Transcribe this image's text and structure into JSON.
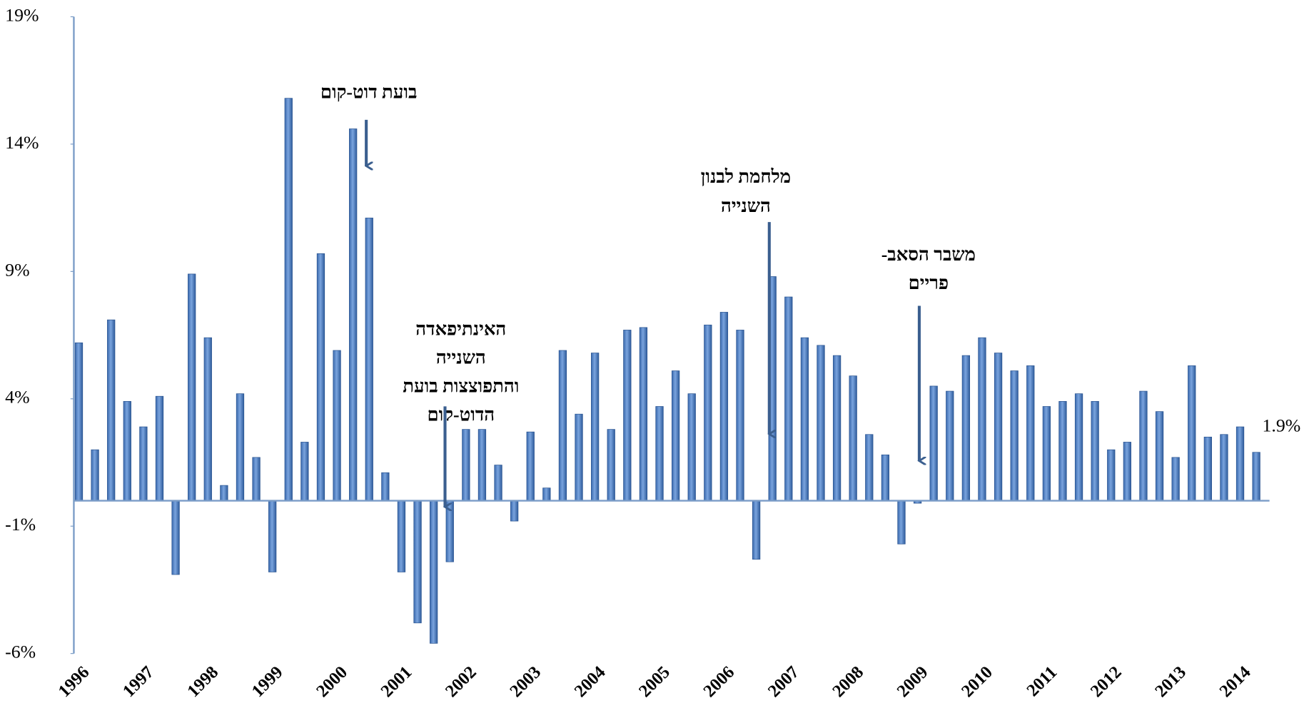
{
  "chart_data": {
    "type": "bar",
    "categories": [
      "1996",
      null,
      null,
      null,
      "1997",
      null,
      null,
      null,
      "1998",
      null,
      null,
      null,
      "1999",
      null,
      null,
      null,
      "2000",
      null,
      null,
      null,
      "2001",
      null,
      null,
      null,
      "2002",
      null,
      null,
      null,
      "2003",
      null,
      null,
      null,
      "2004",
      null,
      null,
      null,
      "2005",
      null,
      null,
      null,
      "2006",
      null,
      null,
      null,
      "2007",
      null,
      null,
      null,
      "2008",
      null,
      null,
      null,
      "2009",
      null,
      null,
      null,
      "2010",
      null,
      null,
      null,
      "2011",
      null,
      null,
      null,
      "2012",
      null,
      null,
      null,
      "2013",
      null,
      null,
      null,
      "2014",
      null
    ],
    "values": [
      6.2,
      2.0,
      7.1,
      3.9,
      2.9,
      4.1,
      -2.9,
      8.9,
      6.4,
      0.6,
      4.2,
      1.7,
      -2.8,
      15.8,
      2.3,
      9.7,
      5.9,
      14.6,
      11.1,
      1.1,
      -2.8,
      -4.8,
      -5.6,
      -2.4,
      2.8,
      2.8,
      1.4,
      -0.8,
      2.7,
      0.5,
      5.9,
      3.4,
      5.8,
      2.8,
      6.7,
      6.8,
      3.7,
      5.1,
      4.2,
      6.9,
      7.4,
      6.7,
      -2.3,
      8.8,
      8.0,
      6.4,
      6.1,
      5.7,
      4.9,
      2.6,
      1.8,
      -1.7,
      -0.1,
      4.5,
      4.3,
      5.7,
      6.4,
      5.8,
      5.1,
      5.3,
      3.7,
      3.9,
      4.2,
      3.9,
      2.0,
      2.3,
      4.3,
      3.5,
      1.7,
      5.3,
      2.5,
      2.6,
      2.9,
      1.9
    ],
    "value_labels": [
      null,
      null,
      null,
      null,
      null,
      null,
      null,
      null,
      null,
      null,
      null,
      null,
      null,
      null,
      null,
      null,
      null,
      null,
      null,
      null,
      null,
      null,
      null,
      null,
      null,
      null,
      null,
      null,
      null,
      null,
      null,
      null,
      null,
      null,
      null,
      null,
      null,
      null,
      null,
      null,
      null,
      null,
      null,
      null,
      null,
      null,
      null,
      null,
      null,
      null,
      null,
      null,
      null,
      null,
      null,
      null,
      null,
      null,
      null,
      null,
      null,
      null,
      null,
      null,
      null,
      null,
      null,
      null,
      null,
      null,
      null,
      null,
      null,
      "1.9%"
    ],
    "color": "#4f81c7",
    "ylim": [
      -6,
      19
    ],
    "yticks": [
      {
        "value": -6,
        "label": "-6%"
      },
      {
        "value": -1,
        "label": "-1%"
      },
      {
        "value": 4,
        "label": "4%"
      },
      {
        "value": 9,
        "label": "9%"
      },
      {
        "value": 14,
        "label": "14%"
      },
      {
        "value": 19,
        "label": "19%"
      }
    ],
    "grid": false,
    "annotations": [
      {
        "lines": [
          "בועת דוט-קום"
        ]
      },
      {
        "lines": [
          "האינתיפאדה",
          "השנייה",
          "והתפוצצות בועת",
          "הדוט-קום"
        ]
      },
      {
        "lines": [
          "מלחמת לבנון",
          "השנייה"
        ]
      },
      {
        "lines": [
          "משבר הסאב-",
          "פריים"
        ]
      }
    ]
  }
}
